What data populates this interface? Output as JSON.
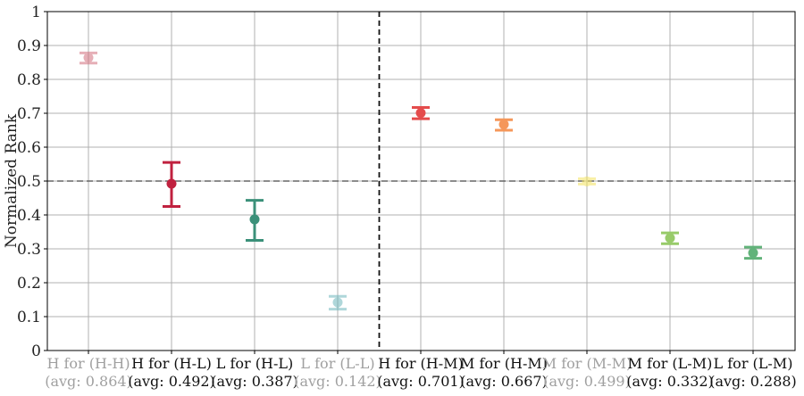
{
  "chart_data": {
    "type": "scatter",
    "ylabel": "Normalized Rank",
    "ylim": [
      0,
      1
    ],
    "yticks": [
      "0",
      "0.1",
      "0.2",
      "0.3",
      "0.4",
      "0.5",
      "0.6",
      "0.7",
      "0.8",
      "0.9",
      "1"
    ],
    "grid": true,
    "reference_line_y": 0.5,
    "divider_after_category_index": 3,
    "categories": [
      {
        "label": "H for (H-H)",
        "avg_label": "(avg: 0.864)",
        "mean": 0.864,
        "low": 0.848,
        "high": 0.878,
        "color": "#d36f7d",
        "faded": true
      },
      {
        "label": "H for (H-L)",
        "avg_label": "(avg: 0.492)",
        "mean": 0.492,
        "low": 0.425,
        "high": 0.555,
        "color": "#c0213f",
        "faded": false
      },
      {
        "label": "L for (H-L)",
        "avg_label": "(avg: 0.387)",
        "mean": 0.387,
        "low": 0.325,
        "high": 0.443,
        "color": "#3b9079",
        "faded": false
      },
      {
        "label": "L for (L-L)",
        "avg_label": "(avg: 0.142)",
        "mean": 0.142,
        "low": 0.122,
        "high": 0.16,
        "color": "#6fb7bd",
        "faded": true
      },
      {
        "label": "H for (H-M)",
        "avg_label": "(avg: 0.701)",
        "mean": 0.701,
        "low": 0.684,
        "high": 0.717,
        "color": "#e44c4c",
        "faded": false
      },
      {
        "label": "M for (H-M)",
        "avg_label": "(avg: 0.667)",
        "mean": 0.667,
        "low": 0.65,
        "high": 0.681,
        "color": "#f5975a",
        "faded": false
      },
      {
        "label": "M for (M-M)",
        "avg_label": "(avg: 0.499)",
        "mean": 0.499,
        "low": 0.491,
        "high": 0.507,
        "color": "#f4e35c",
        "faded": true
      },
      {
        "label": "M for (L-M)",
        "avg_label": "(avg: 0.332)",
        "mean": 0.332,
        "low": 0.315,
        "high": 0.347,
        "color": "#98cb6a",
        "faded": false
      },
      {
        "label": "L for (L-M)",
        "avg_label": "(avg: 0.288)",
        "mean": 0.288,
        "low": 0.272,
        "high": 0.305,
        "color": "#62b37a",
        "faded": false
      }
    ]
  }
}
